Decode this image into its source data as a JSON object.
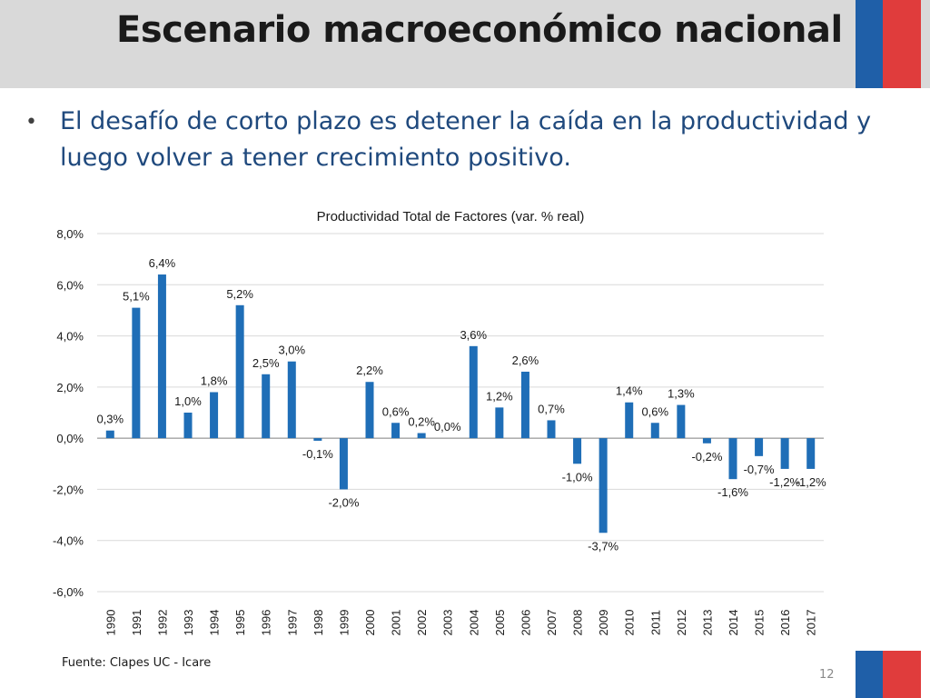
{
  "slide": {
    "title": "Escenario macroeconómico nacional",
    "bullet": "El desafío de corto plazo es detener la caída en la productividad y luego volver a tener crecimiento positivo.",
    "source": "Fuente: Clapes UC - Icare",
    "page_number": "12"
  },
  "colors": {
    "bar": "#1f6eb7",
    "flag_blue": "#1f5fa8",
    "flag_red": "#e03c3c",
    "header_bg": "#d9d9d9",
    "bullet_text": "#1f497d"
  },
  "chart_data": {
    "type": "bar",
    "title": "Productividad Total de Factores (var. % real)",
    "xlabel": "",
    "ylabel": "",
    "ylim": [
      -6,
      8
    ],
    "yticks": [
      8,
      6,
      4,
      2,
      0,
      -2,
      -4,
      -6
    ],
    "ytick_labels": [
      "8,0%",
      "6,0%",
      "4,0%",
      "2,0%",
      "0,0%",
      "-2,0%",
      "-4,0%",
      "-6,0%"
    ],
    "grid": true,
    "categories": [
      "1990",
      "1991",
      "1992",
      "1993",
      "1994",
      "1995",
      "1996",
      "1997",
      "1998",
      "1999",
      "2000",
      "2001",
      "2002",
      "2003",
      "2004",
      "2005",
      "2006",
      "2007",
      "2008",
      "2009",
      "2010",
      "2011",
      "2012",
      "2013",
      "2014",
      "2015",
      "2016",
      "2017"
    ],
    "values": [
      0.3,
      5.1,
      6.4,
      1.0,
      1.8,
      5.2,
      2.5,
      3.0,
      -0.1,
      -2.0,
      2.2,
      0.6,
      0.2,
      0.0,
      3.6,
      1.2,
      2.6,
      0.7,
      -1.0,
      -3.7,
      1.4,
      0.6,
      1.3,
      -0.2,
      -1.6,
      -0.7,
      -1.2,
      -1.2
    ],
    "labels": [
      "0,3%",
      "5,1%",
      "6,4%",
      "1,0%",
      "1,8%",
      "5,2%",
      "2,5%",
      "3,0%",
      "-0,1%",
      "-2,0%",
      "2,2%",
      "0,6%",
      "0,2%",
      "0,0%",
      "3,6%",
      "1,2%",
      "2,6%",
      "0,7%",
      "-1,0%",
      "-3,7%",
      "1,4%",
      "0,6%",
      "1,3%",
      "-0,2%",
      "-1,6%",
      "-0,7%",
      "-1,2%",
      "-1,2%"
    ]
  }
}
